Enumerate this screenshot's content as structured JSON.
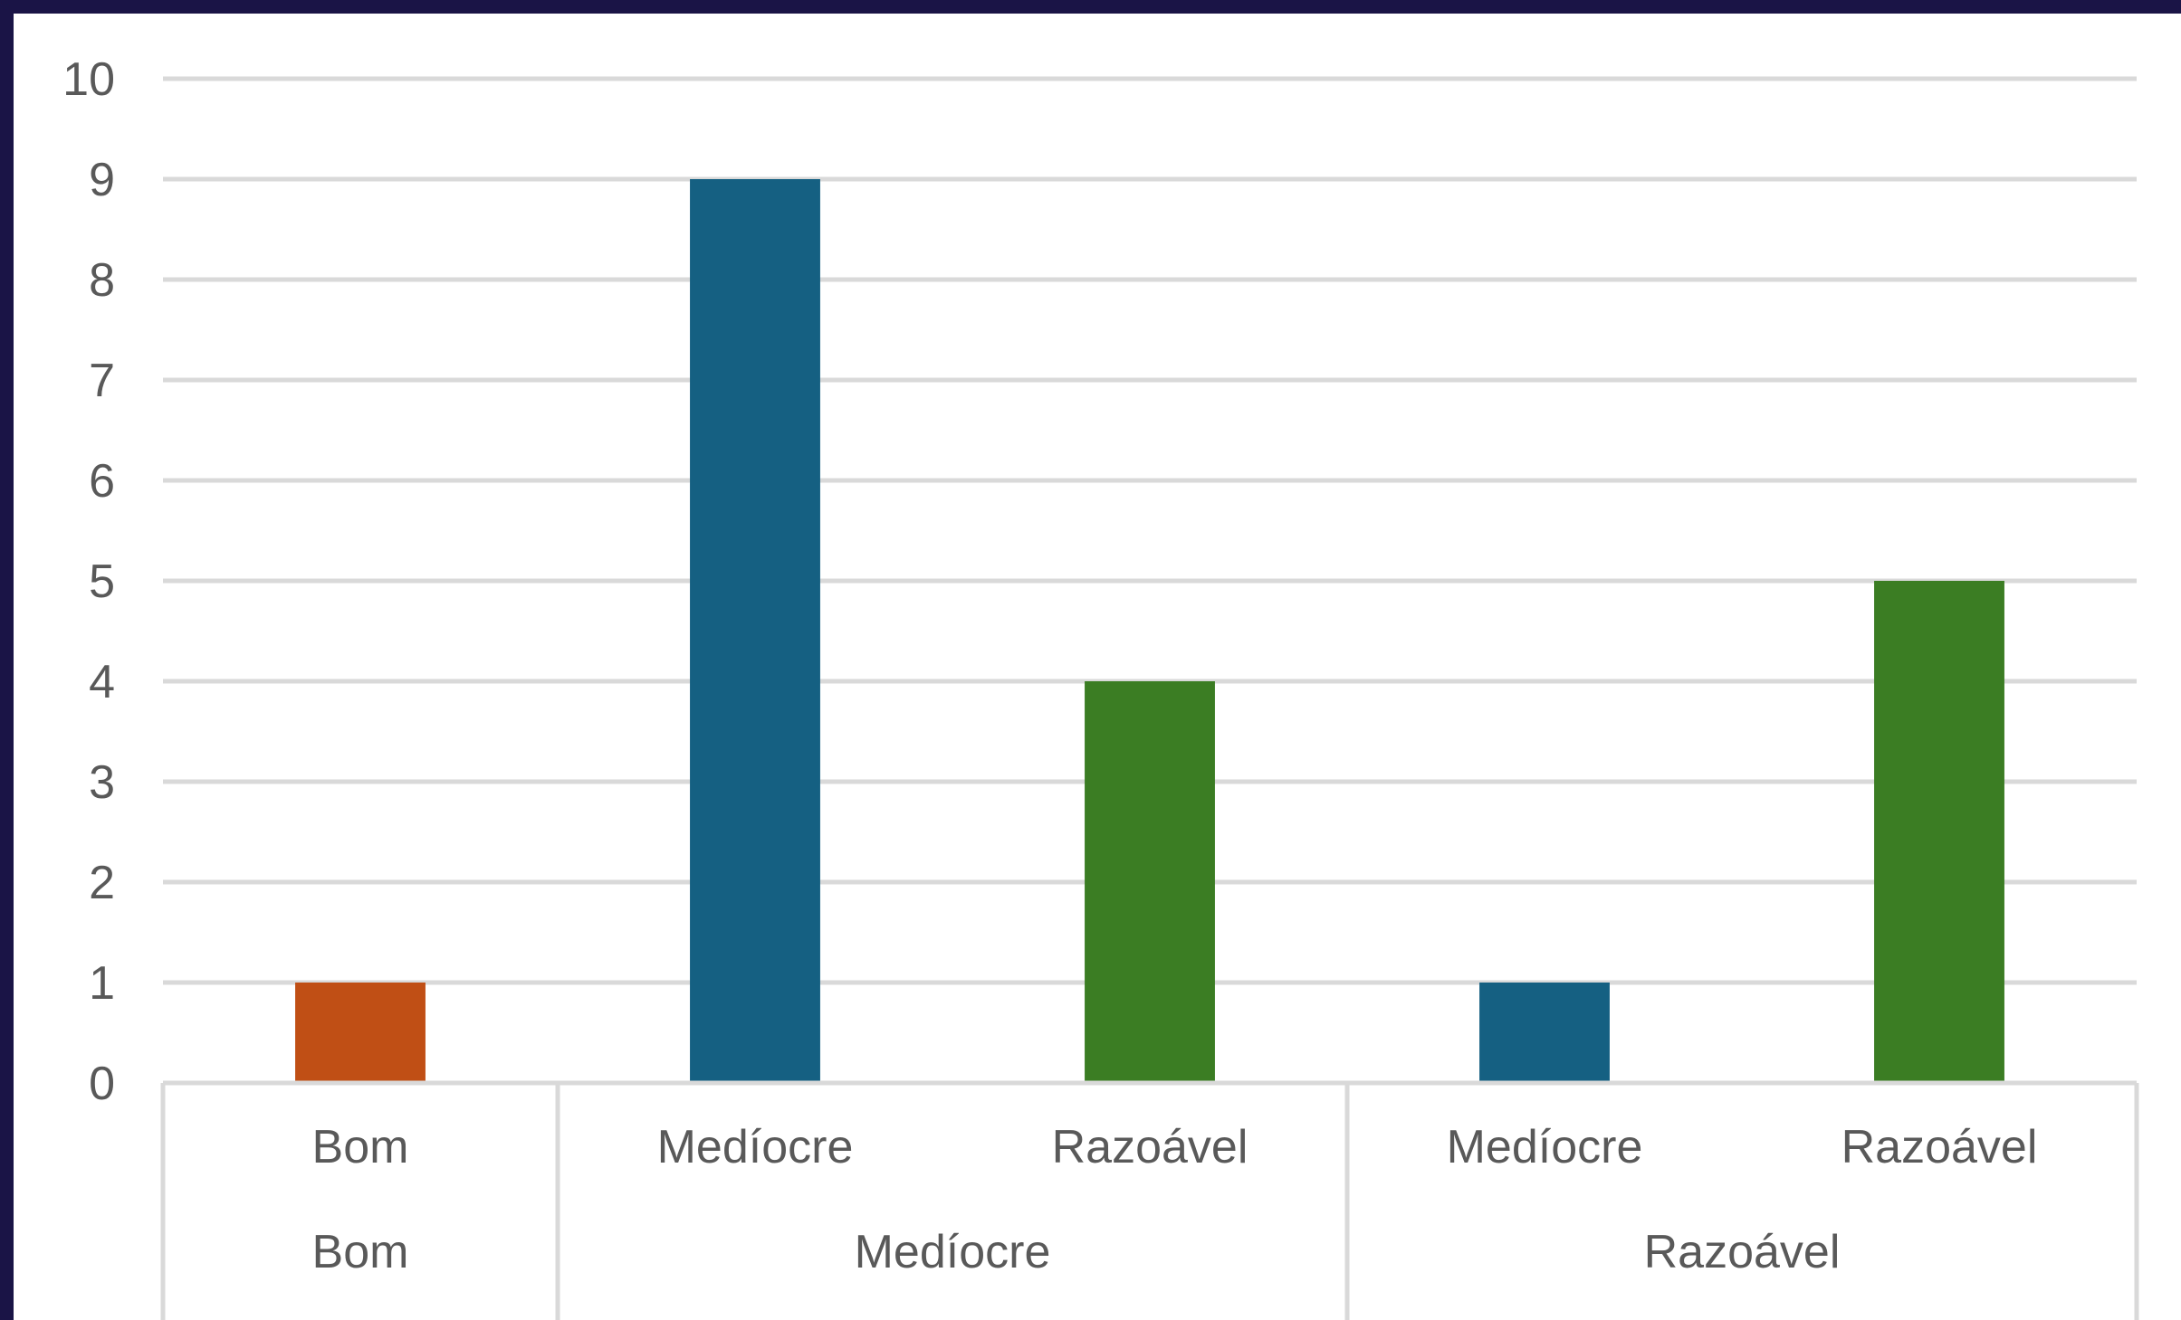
{
  "chart_data": {
    "type": "bar",
    "title": "",
    "xlabel": "",
    "ylabel": "",
    "ylim": [
      0,
      10
    ],
    "yticks": [
      0,
      1,
      2,
      3,
      4,
      5,
      6,
      7,
      8,
      9,
      10
    ],
    "grid": true,
    "legend": "none",
    "groups": [
      {
        "label": "Bom",
        "bars": [
          {
            "category": "Bom",
            "value": 1,
            "color": "#c04f15"
          }
        ]
      },
      {
        "label": "Medíocre",
        "bars": [
          {
            "category": "Medíocre",
            "value": 9,
            "color": "#156082"
          },
          {
            "category": "Razoável",
            "value": 4,
            "color": "#3b7d23"
          }
        ]
      },
      {
        "label": "Razoável",
        "bars": [
          {
            "category": "Medíocre",
            "value": 1,
            "color": "#156082"
          },
          {
            "category": "Razoável",
            "value": 5,
            "color": "#3b7d23"
          }
        ]
      }
    ]
  }
}
